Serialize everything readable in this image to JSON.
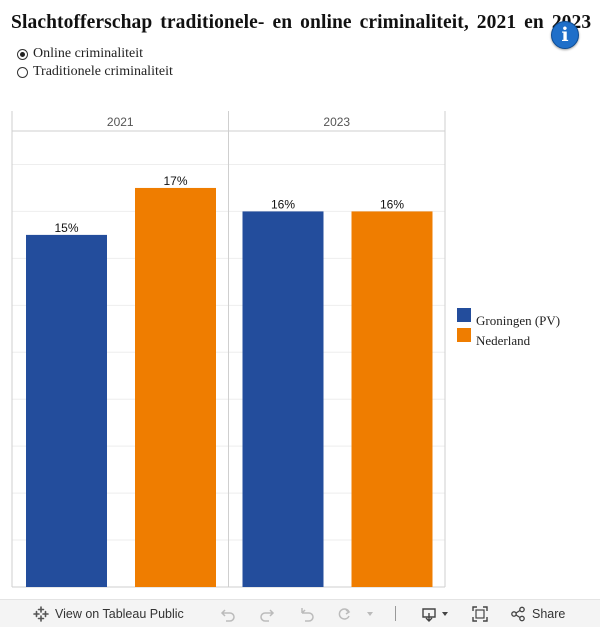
{
  "title": "Slachtofferschap traditionele- en online criminaliteit, 2021 en 2023",
  "filter": {
    "options": [
      {
        "label": "Online criminaliteit",
        "selected": true
      },
      {
        "label": "Traditionele criminaliteit",
        "selected": false
      }
    ]
  },
  "chart_data": {
    "type": "bar",
    "panels": [
      "2021",
      "2023"
    ],
    "series": [
      {
        "name": "Groningen (PV)",
        "color": "#234d9c",
        "values": [
          15,
          16
        ],
        "labels": [
          "15%",
          "16%"
        ]
      },
      {
        "name": "Nederland",
        "color": "#ef7d00",
        "values": [
          17,
          16
        ],
        "labels": [
          "17%",
          "16%"
        ]
      }
    ],
    "ylim": [
      0,
      19
    ],
    "grid": true,
    "legend_position": "right"
  },
  "toolbar": {
    "view_label": "View on Tableau Public",
    "share_label": "Share"
  }
}
